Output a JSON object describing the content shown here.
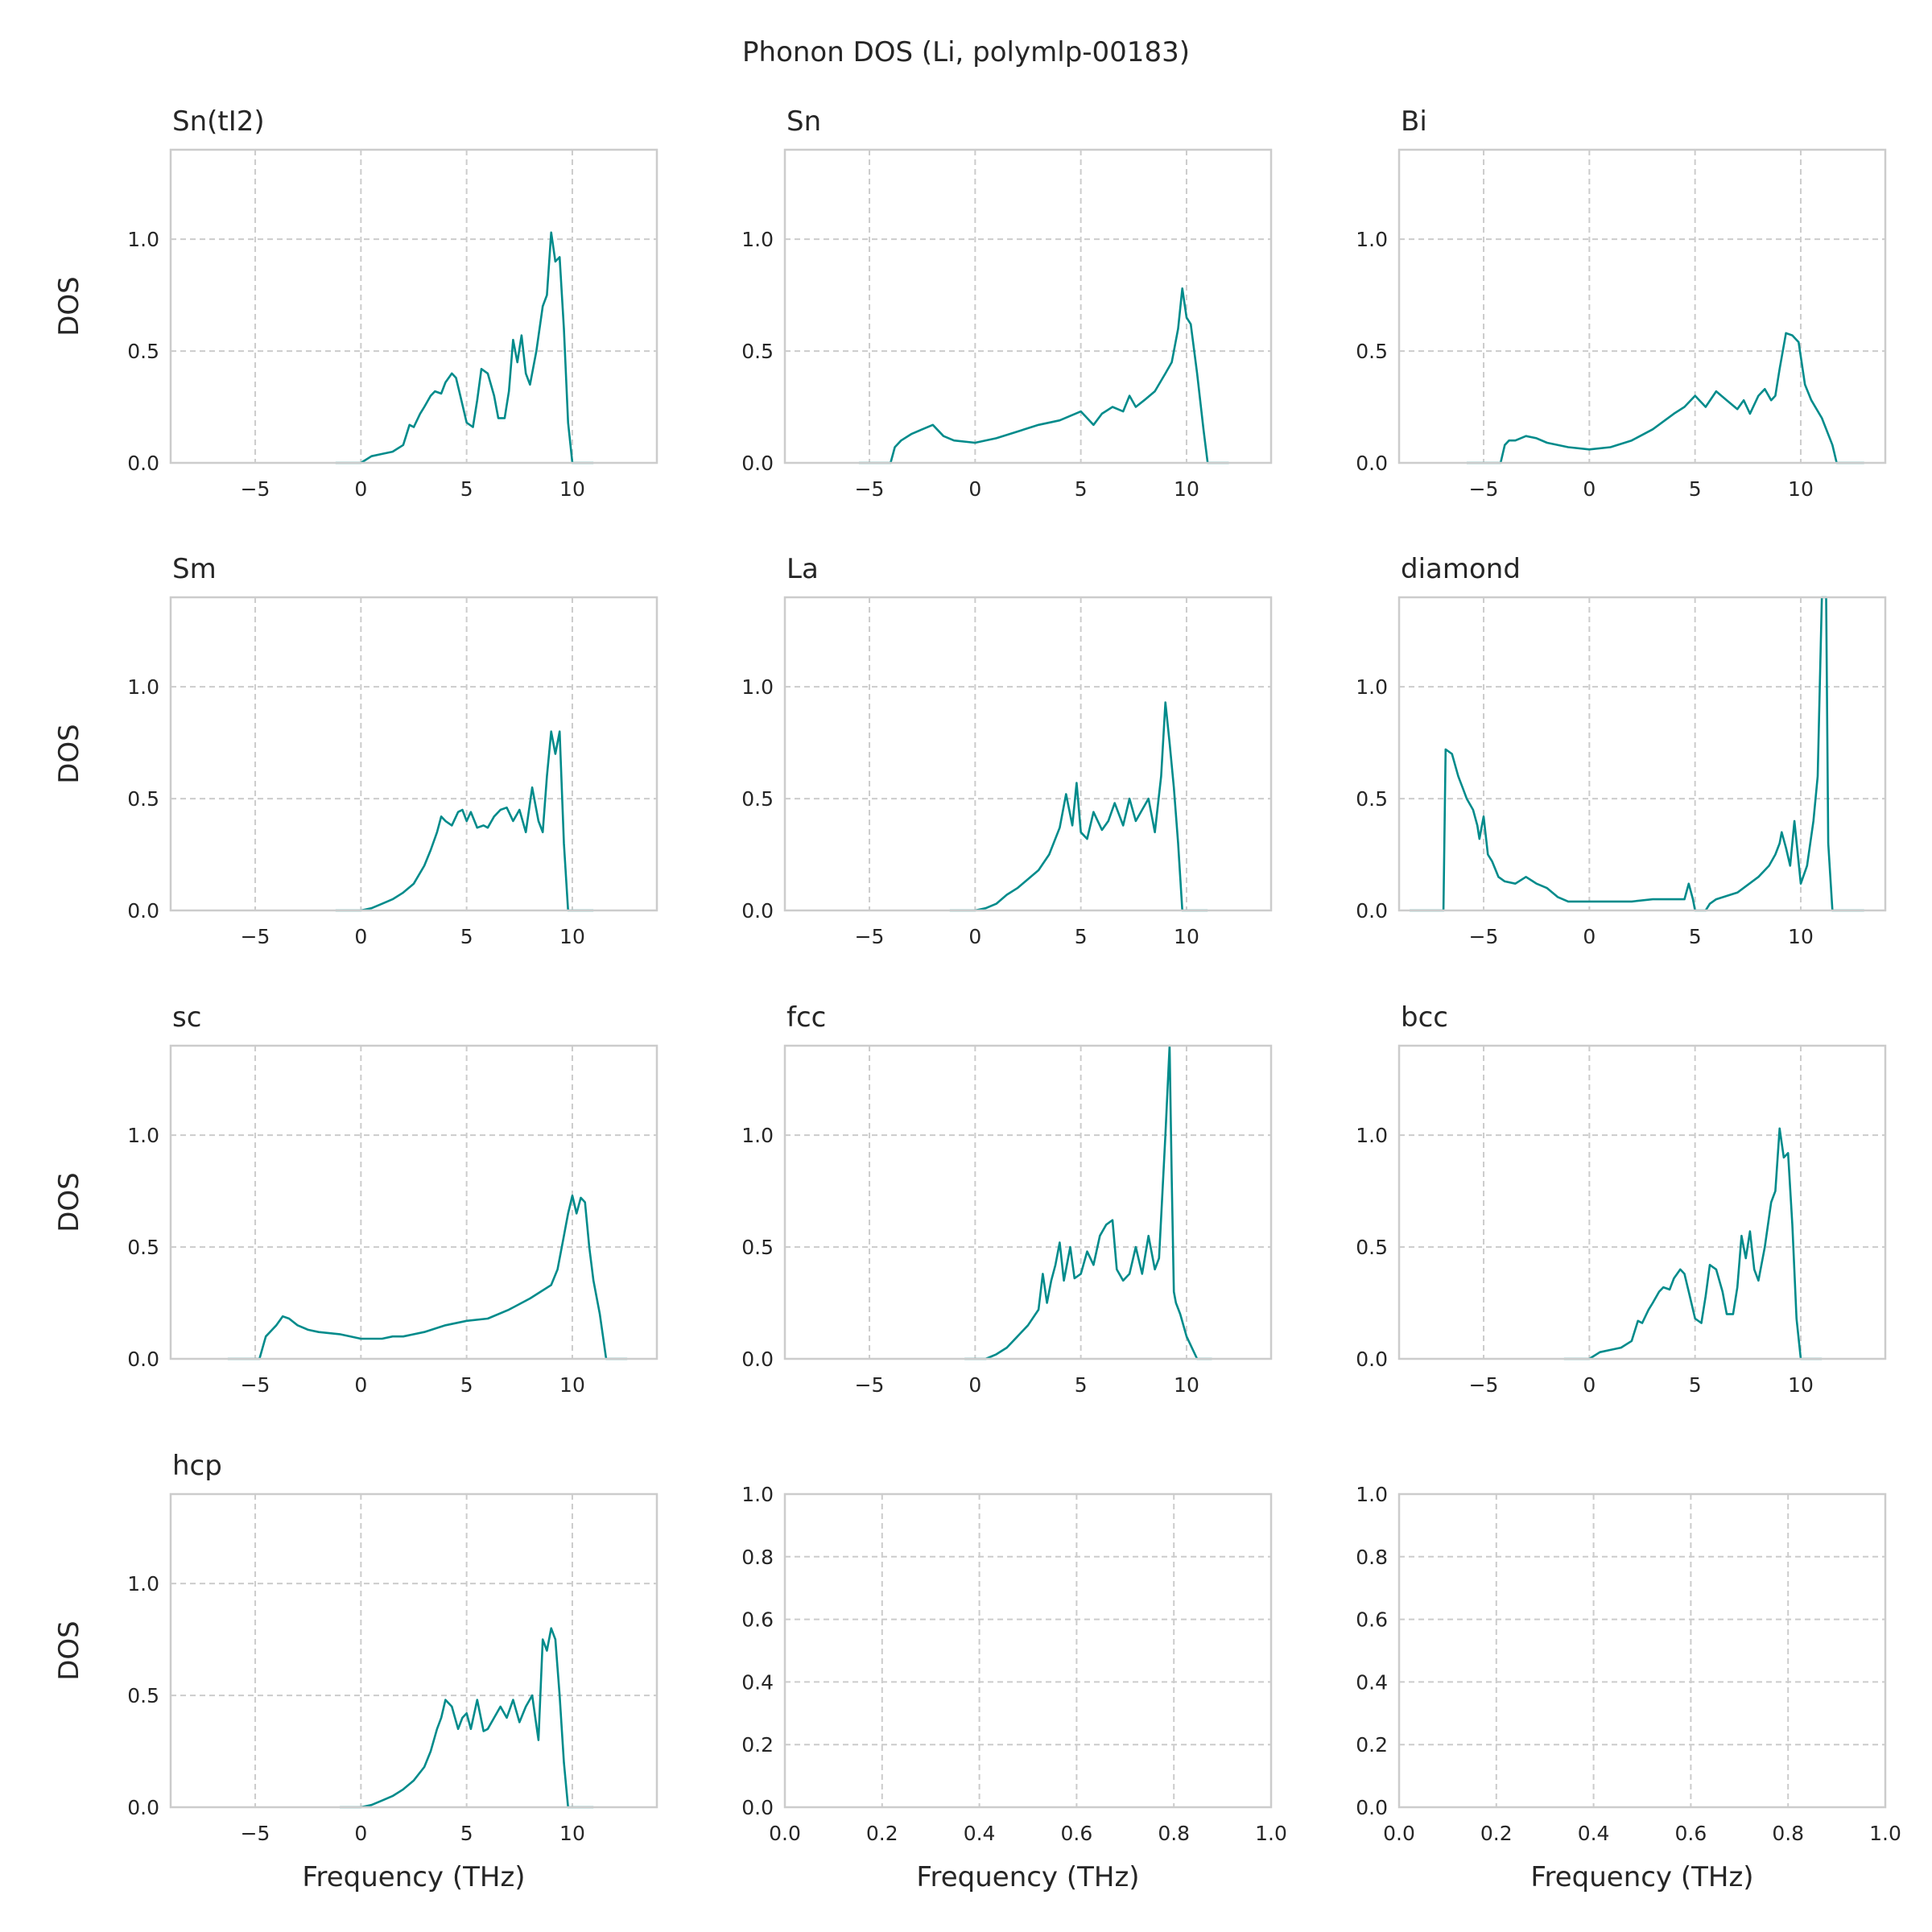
{
  "figure": {
    "suptitle": "Phonon DOS (Li, polymlp-00183)",
    "line_color": "#008b8b",
    "grid_color": "#cccccc"
  },
  "chart_data": [
    {
      "type": "line",
      "title": "Sn(tI2)",
      "xlabel": "",
      "ylabel": "DOS",
      "xlim": [
        -9,
        14
      ],
      "ylim": [
        0,
        1.4
      ],
      "xticks": [
        "−5",
        "0",
        "5",
        "10"
      ],
      "xtick_values": [
        -5,
        0,
        5,
        10
      ],
      "yticks": [
        "0.0",
        "0.5",
        "1.0"
      ],
      "ytick_values": [
        0,
        0.5,
        1.0
      ],
      "grid": true,
      "x": [
        -1.2,
        0,
        0.5,
        1,
        1.5,
        2,
        2.3,
        2.5,
        2.8,
        3,
        3.3,
        3.5,
        3.8,
        4,
        4.3,
        4.5,
        4.7,
        5,
        5.3,
        5.5,
        5.7,
        6,
        6.3,
        6.5,
        6.8,
        7,
        7.2,
        7.4,
        7.6,
        7.8,
        8,
        8.3,
        8.6,
        8.8,
        9,
        9.2,
        9.4,
        9.6,
        9.8,
        10,
        11
      ],
      "y": [
        0,
        0,
        0.03,
        0.04,
        0.05,
        0.08,
        0.17,
        0.16,
        0.22,
        0.25,
        0.3,
        0.32,
        0.31,
        0.36,
        0.4,
        0.38,
        0.3,
        0.18,
        0.16,
        0.28,
        0.42,
        0.4,
        0.3,
        0.2,
        0.2,
        0.32,
        0.55,
        0.45,
        0.57,
        0.4,
        0.35,
        0.5,
        0.7,
        0.75,
        1.03,
        0.9,
        0.92,
        0.6,
        0.18,
        0,
        0
      ]
    },
    {
      "type": "line",
      "title": "Sn",
      "xlabel": "",
      "ylabel": "",
      "xlim": [
        -9,
        14
      ],
      "ylim": [
        0,
        1.4
      ],
      "xticks": [
        "−5",
        "0",
        "5",
        "10"
      ],
      "xtick_values": [
        -5,
        0,
        5,
        10
      ],
      "yticks": [
        "0.0",
        "0.5",
        "1.0"
      ],
      "ytick_values": [
        0,
        0.5,
        1.0
      ],
      "grid": true,
      "x": [
        -5.5,
        -4,
        -3.8,
        -3.5,
        -3,
        -2.5,
        -2,
        -1.5,
        -1,
        0,
        1,
        2,
        3,
        4,
        5,
        5.3,
        5.6,
        6,
        6.5,
        7,
        7.3,
        7.6,
        8,
        8.5,
        9,
        9.3,
        9.6,
        9.8,
        10,
        10.2,
        10.5,
        10.8,
        11,
        12
      ],
      "y": [
        0,
        0,
        0.07,
        0.1,
        0.13,
        0.15,
        0.17,
        0.12,
        0.1,
        0.09,
        0.11,
        0.14,
        0.17,
        0.19,
        0.23,
        0.2,
        0.17,
        0.22,
        0.25,
        0.23,
        0.3,
        0.25,
        0.28,
        0.32,
        0.4,
        0.45,
        0.6,
        0.78,
        0.65,
        0.62,
        0.4,
        0.15,
        0,
        0
      ]
    },
    {
      "type": "line",
      "title": "Bi",
      "xlabel": "",
      "ylabel": "",
      "xlim": [
        -9,
        14
      ],
      "ylim": [
        0,
        1.4
      ],
      "xticks": [
        "−5",
        "0",
        "5",
        "10"
      ],
      "xtick_values": [
        -5,
        0,
        5,
        10
      ],
      "yticks": [
        "0.0",
        "0.5",
        "1.0"
      ],
      "ytick_values": [
        0,
        0.5,
        1.0
      ],
      "grid": true,
      "x": [
        -5.8,
        -4.2,
        -4,
        -3.8,
        -3.5,
        -3,
        -2.5,
        -2,
        -1,
        0,
        1,
        2,
        3,
        4,
        4.5,
        5,
        5.5,
        6,
        6.5,
        7,
        7.3,
        7.6,
        8,
        8.3,
        8.6,
        8.8,
        9,
        9.3,
        9.6,
        9.9,
        10.2,
        10.5,
        11,
        11.5,
        11.7,
        13
      ],
      "y": [
        0,
        0,
        0.08,
        0.1,
        0.1,
        0.12,
        0.11,
        0.09,
        0.07,
        0.06,
        0.07,
        0.1,
        0.15,
        0.22,
        0.25,
        0.3,
        0.25,
        0.32,
        0.28,
        0.24,
        0.28,
        0.22,
        0.3,
        0.33,
        0.28,
        0.3,
        0.42,
        0.58,
        0.57,
        0.54,
        0.35,
        0.28,
        0.2,
        0.08,
        0,
        0
      ]
    },
    {
      "type": "line",
      "title": "Sm",
      "xlabel": "",
      "ylabel": "DOS",
      "xlim": [
        -9,
        14
      ],
      "ylim": [
        0,
        1.4
      ],
      "xticks": [
        "−5",
        "0",
        "5",
        "10"
      ],
      "xtick_values": [
        -5,
        0,
        5,
        10
      ],
      "yticks": [
        "0.0",
        "0.5",
        "1.0"
      ],
      "ytick_values": [
        0,
        0.5,
        1.0
      ],
      "grid": true,
      "x": [
        -1.2,
        0,
        0.5,
        1,
        1.5,
        2,
        2.5,
        3,
        3.3,
        3.6,
        3.8,
        4,
        4.3,
        4.6,
        4.8,
        5,
        5.2,
        5.5,
        5.8,
        6,
        6.3,
        6.6,
        6.9,
        7.2,
        7.5,
        7.8,
        8.1,
        8.4,
        8.6,
        8.8,
        9,
        9.2,
        9.4,
        9.6,
        9.8,
        10,
        11
      ],
      "y": [
        0,
        0,
        0.01,
        0.03,
        0.05,
        0.08,
        0.12,
        0.2,
        0.27,
        0.35,
        0.42,
        0.4,
        0.38,
        0.44,
        0.45,
        0.4,
        0.44,
        0.37,
        0.38,
        0.37,
        0.42,
        0.45,
        0.46,
        0.4,
        0.45,
        0.35,
        0.55,
        0.4,
        0.35,
        0.6,
        0.8,
        0.7,
        0.8,
        0.3,
        0,
        0,
        0
      ]
    },
    {
      "type": "line",
      "title": "La",
      "xlabel": "",
      "ylabel": "",
      "xlim": [
        -9,
        14
      ],
      "ylim": [
        0,
        1.4
      ],
      "xticks": [
        "−5",
        "0",
        "5",
        "10"
      ],
      "xtick_values": [
        -5,
        0,
        5,
        10
      ],
      "yticks": [
        "0.0",
        "0.5",
        "1.0"
      ],
      "ytick_values": [
        0,
        0.5,
        1.0
      ],
      "grid": true,
      "x": [
        -1.2,
        0,
        0.5,
        1,
        1.5,
        2,
        2.5,
        3,
        3.5,
        4,
        4.3,
        4.6,
        4.8,
        5,
        5.3,
        5.6,
        6,
        6.3,
        6.6,
        7,
        7.3,
        7.6,
        7.9,
        8.2,
        8.5,
        8.8,
        9,
        9.2,
        9.4,
        9.6,
        9.8,
        10,
        11
      ],
      "y": [
        0,
        0,
        0.01,
        0.03,
        0.07,
        0.1,
        0.14,
        0.18,
        0.25,
        0.37,
        0.52,
        0.38,
        0.57,
        0.35,
        0.32,
        0.44,
        0.36,
        0.4,
        0.48,
        0.38,
        0.5,
        0.4,
        0.45,
        0.5,
        0.35,
        0.6,
        0.93,
        0.75,
        0.55,
        0.3,
        0,
        0,
        0
      ]
    },
    {
      "type": "line",
      "title": "diamond",
      "xlabel": "",
      "ylabel": "",
      "xlim": [
        -9,
        14
      ],
      "ylim": [
        0,
        1.4
      ],
      "xticks": [
        "−5",
        "0",
        "5",
        "10"
      ],
      "xtick_values": [
        -5,
        0,
        5,
        10
      ],
      "yticks": [
        "0.0",
        "0.5",
        "1.0"
      ],
      "ytick_values": [
        0,
        0.5,
        1.0
      ],
      "grid": true,
      "x": [
        -8.5,
        -6.9,
        -6.8,
        -6.5,
        -6.2,
        -6,
        -5.8,
        -5.5,
        -5.3,
        -5.2,
        -5,
        -4.8,
        -4.6,
        -4.3,
        -4,
        -3.5,
        -3,
        -2.5,
        -2,
        -1.5,
        -1,
        0,
        1,
        2,
        3,
        4,
        4.5,
        4.7,
        4.9,
        5,
        5.5,
        5.7,
        6,
        7,
        8,
        8.5,
        8.8,
        9,
        9.1,
        9.3,
        9.5,
        9.7,
        10,
        10.3,
        10.6,
        10.8,
        11,
        11.2,
        11.3,
        11.5,
        13
      ],
      "y": [
        0,
        0,
        0.72,
        0.7,
        0.6,
        0.55,
        0.5,
        0.45,
        0.38,
        0.32,
        0.42,
        0.25,
        0.22,
        0.15,
        0.13,
        0.12,
        0.15,
        0.12,
        0.1,
        0.06,
        0.04,
        0.04,
        0.04,
        0.04,
        0.05,
        0.05,
        0.05,
        0.12,
        0.05,
        0,
        0,
        0.03,
        0.05,
        0.08,
        0.15,
        0.2,
        0.25,
        0.3,
        0.35,
        0.28,
        0.2,
        0.4,
        0.12,
        0.2,
        0.4,
        0.6,
        1.4,
        1.4,
        0.3,
        0,
        0
      ]
    },
    {
      "type": "line",
      "title": "sc",
      "xlabel": "",
      "ylabel": "DOS",
      "xlim": [
        -9,
        14
      ],
      "ylim": [
        0,
        1.4
      ],
      "xticks": [
        "−5",
        "0",
        "5",
        "10"
      ],
      "xtick_values": [
        -5,
        0,
        5,
        10
      ],
      "yticks": [
        "0.0",
        "0.5",
        "1.0"
      ],
      "ytick_values": [
        0,
        0.5,
        1.0
      ],
      "grid": true,
      "x": [
        -6.3,
        -4.8,
        -4.5,
        -4,
        -3.7,
        -3.4,
        -3,
        -2.5,
        -2,
        -1,
        0,
        1,
        1.5,
        2,
        3,
        4,
        5,
        6,
        7,
        8,
        8.5,
        9,
        9.3,
        9.6,
        9.8,
        10,
        10.2,
        10.4,
        10.6,
        10.8,
        11,
        11.3,
        11.6,
        12.6
      ],
      "y": [
        0,
        0,
        0.1,
        0.15,
        0.19,
        0.18,
        0.15,
        0.13,
        0.12,
        0.11,
        0.09,
        0.09,
        0.1,
        0.1,
        0.12,
        0.15,
        0.17,
        0.18,
        0.22,
        0.27,
        0.3,
        0.33,
        0.4,
        0.55,
        0.65,
        0.73,
        0.65,
        0.72,
        0.7,
        0.5,
        0.35,
        0.2,
        0,
        0
      ]
    },
    {
      "type": "line",
      "title": "fcc",
      "xlabel": "",
      "ylabel": "",
      "xlim": [
        -9,
        14
      ],
      "ylim": [
        0,
        1.4
      ],
      "xticks": [
        "−5",
        "0",
        "5",
        "10"
      ],
      "xtick_values": [
        -5,
        0,
        5,
        10
      ],
      "yticks": [
        "0.0",
        "0.5",
        "1.0"
      ],
      "ytick_values": [
        0,
        0.5,
        1.0
      ],
      "grid": true,
      "x": [
        -0.5,
        0.5,
        1,
        1.5,
        2,
        2.5,
        3,
        3.2,
        3.4,
        3.6,
        3.8,
        4,
        4.2,
        4.5,
        4.7,
        5,
        5.3,
        5.6,
        5.9,
        6.2,
        6.5,
        6.7,
        7,
        7.3,
        7.6,
        7.9,
        8.2,
        8.5,
        8.7,
        9,
        9.2,
        9.3,
        9.4,
        9.5,
        9.7,
        10,
        10.5,
        11.2
      ],
      "y": [
        0,
        0,
        0.02,
        0.05,
        0.1,
        0.15,
        0.22,
        0.38,
        0.25,
        0.35,
        0.42,
        0.52,
        0.35,
        0.5,
        0.36,
        0.38,
        0.48,
        0.42,
        0.55,
        0.6,
        0.62,
        0.4,
        0.35,
        0.38,
        0.5,
        0.38,
        0.55,
        0.4,
        0.45,
        1.0,
        1.4,
        0.8,
        0.3,
        0.25,
        0.2,
        0.1,
        0,
        0
      ]
    },
    {
      "type": "line",
      "title": "bcc",
      "xlabel": "",
      "ylabel": "",
      "xlim": [
        -9,
        14
      ],
      "ylim": [
        0,
        1.4
      ],
      "xticks": [
        "−5",
        "0",
        "5",
        "10"
      ],
      "xtick_values": [
        -5,
        0,
        5,
        10
      ],
      "yticks": [
        "0.0",
        "0.5",
        "1.0"
      ],
      "ytick_values": [
        0,
        0.5,
        1.0
      ],
      "grid": true,
      "x": [
        -1.2,
        0,
        0.5,
        1,
        1.5,
        2,
        2.3,
        2.5,
        2.8,
        3,
        3.3,
        3.5,
        3.8,
        4,
        4.3,
        4.5,
        4.7,
        5,
        5.3,
        5.5,
        5.7,
        6,
        6.3,
        6.5,
        6.8,
        7,
        7.2,
        7.4,
        7.6,
        7.8,
        8,
        8.3,
        8.6,
        8.8,
        9,
        9.2,
        9.4,
        9.6,
        9.8,
        10,
        11
      ],
      "y": [
        0,
        0,
        0.03,
        0.04,
        0.05,
        0.08,
        0.17,
        0.16,
        0.22,
        0.25,
        0.3,
        0.32,
        0.31,
        0.36,
        0.4,
        0.38,
        0.3,
        0.18,
        0.16,
        0.28,
        0.42,
        0.4,
        0.3,
        0.2,
        0.2,
        0.32,
        0.55,
        0.45,
        0.57,
        0.4,
        0.35,
        0.5,
        0.7,
        0.75,
        1.03,
        0.9,
        0.92,
        0.6,
        0.18,
        0,
        0
      ]
    },
    {
      "type": "line",
      "title": "hcp",
      "xlabel": "Frequency (THz)",
      "ylabel": "DOS",
      "xlim": [
        -9,
        14
      ],
      "ylim": [
        0,
        1.4
      ],
      "xticks": [
        "−5",
        "0",
        "5",
        "10"
      ],
      "xtick_values": [
        -5,
        0,
        5,
        10
      ],
      "yticks": [
        "0.0",
        "0.5",
        "1.0"
      ],
      "ytick_values": [
        0,
        0.5,
        1.0
      ],
      "grid": true,
      "x": [
        -1,
        0,
        0.5,
        1,
        1.5,
        2,
        2.5,
        3,
        3.3,
        3.6,
        3.8,
        4,
        4.3,
        4.6,
        4.8,
        5,
        5.2,
        5.5,
        5.8,
        6,
        6.3,
        6.6,
        6.9,
        7.2,
        7.5,
        7.8,
        8.1,
        8.4,
        8.6,
        8.8,
        9,
        9.2,
        9.4,
        9.6,
        9.8,
        10,
        11
      ],
      "y": [
        0,
        0,
        0.01,
        0.03,
        0.05,
        0.08,
        0.12,
        0.18,
        0.25,
        0.35,
        0.4,
        0.48,
        0.45,
        0.35,
        0.4,
        0.42,
        0.35,
        0.48,
        0.34,
        0.35,
        0.4,
        0.45,
        0.4,
        0.48,
        0.38,
        0.45,
        0.5,
        0.3,
        0.75,
        0.7,
        0.8,
        0.75,
        0.5,
        0.2,
        0,
        0,
        0
      ]
    },
    {
      "type": "line",
      "title": "",
      "xlabel": "Frequency (THz)",
      "ylabel": "",
      "xlim": [
        0,
        1
      ],
      "ylim": [
        0,
        1
      ],
      "xticks": [
        "0.0",
        "0.2",
        "0.4",
        "0.6",
        "0.8",
        "1.0"
      ],
      "xtick_values": [
        0,
        0.2,
        0.4,
        0.6,
        0.8,
        1.0
      ],
      "yticks": [
        "0.0",
        "0.2",
        "0.4",
        "0.6",
        "0.8",
        "1.0"
      ],
      "ytick_values": [
        0,
        0.2,
        0.4,
        0.6,
        0.8,
        1.0
      ],
      "grid": true,
      "x": [],
      "y": []
    },
    {
      "type": "line",
      "title": "",
      "xlabel": "Frequency (THz)",
      "ylabel": "",
      "xlim": [
        0,
        1
      ],
      "ylim": [
        0,
        1
      ],
      "xticks": [
        "0.0",
        "0.2",
        "0.4",
        "0.6",
        "0.8",
        "1.0"
      ],
      "xtick_values": [
        0,
        0.2,
        0.4,
        0.6,
        0.8,
        1.0
      ],
      "yticks": [
        "0.0",
        "0.2",
        "0.4",
        "0.6",
        "0.8",
        "1.0"
      ],
      "ytick_values": [
        0,
        0.2,
        0.4,
        0.6,
        0.8,
        1.0
      ],
      "grid": true,
      "x": [],
      "y": []
    }
  ]
}
